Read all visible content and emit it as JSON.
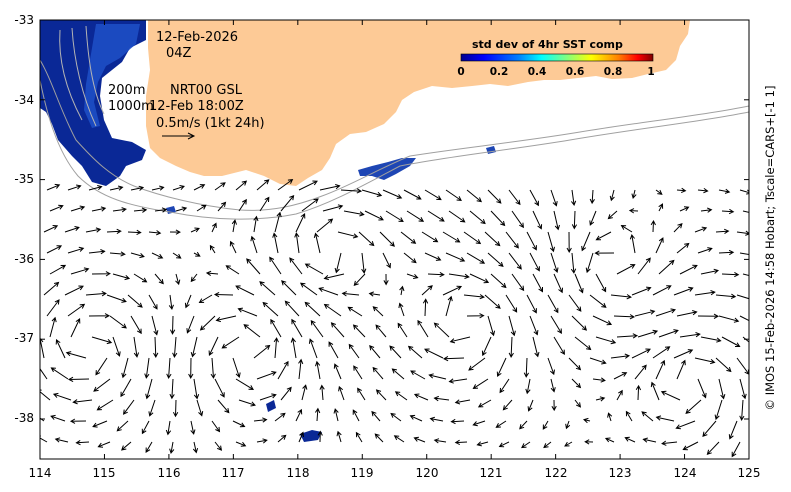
{
  "map": {
    "date": "12-Feb-2026",
    "time": "04Z",
    "contour_a": "200m",
    "contour_b": "1000m",
    "product": "NRT00 GSL",
    "product_time": "12-Feb 18:00Z",
    "scale_label": "0.5m/s (1kt 24h)",
    "credit": "© IMOS 15-Feb-2026 14:58 Hobart; Tscale=CARS+[-1 1]"
  },
  "colorbar": {
    "title": "std dev of 4hr SST comp",
    "ticks": [
      "0",
      "0.2",
      "0.4",
      "0.6",
      "0.8",
      "1"
    ],
    "colors": [
      "#00008f",
      "#0000ff",
      "#0080ff",
      "#00ffff",
      "#80ff80",
      "#ffff00",
      "#ff8000",
      "#ff0000",
      "#800000"
    ]
  },
  "axes": {
    "lon_ticks": [
      "114",
      "115",
      "116",
      "117",
      "118",
      "119",
      "120",
      "121",
      "122",
      "123",
      "124",
      "125"
    ],
    "lat_ticks": [
      "-33",
      "-34",
      "-35",
      "-36",
      "-37",
      "-38"
    ],
    "lon_range": [
      114,
      125
    ],
    "lat_range": [
      -38.5,
      -33
    ]
  },
  "colors": {
    "land": "#fdca96",
    "sst_dark": "#0a2896",
    "sst_mid": "#1e50c8",
    "contour": "#a0a0a0"
  }
}
